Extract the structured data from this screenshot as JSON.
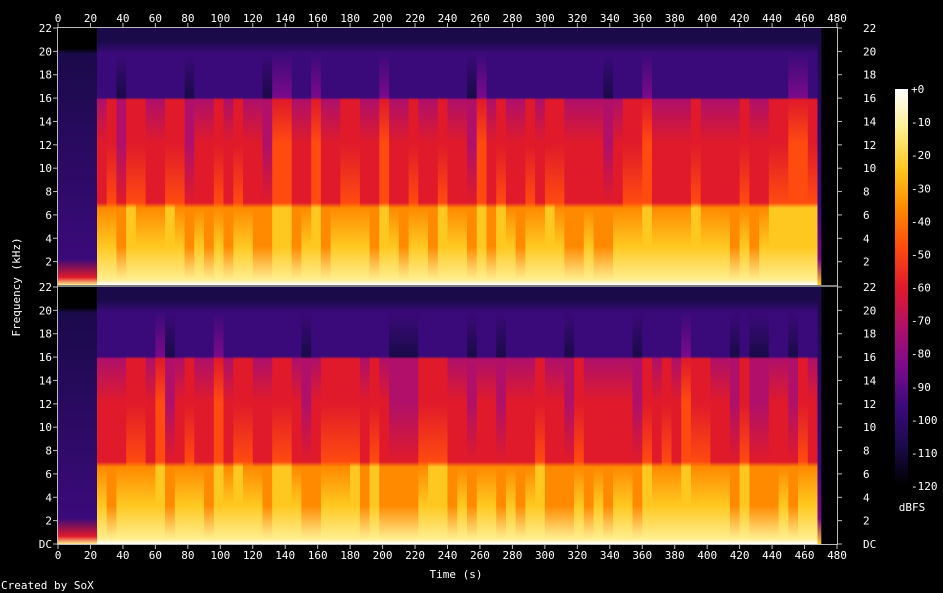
{
  "chart_data": {
    "type": "heatmap",
    "kind": "spectrogram",
    "channels": 2,
    "xlabel": "Time (s)",
    "ylabel": "Frequency (kHz)",
    "x_ticks": [
      "0",
      "20",
      "40",
      "60",
      "80",
      "100",
      "120",
      "140",
      "160",
      "180",
      "200",
      "220",
      "240",
      "260",
      "280",
      "300",
      "320",
      "340",
      "360",
      "380",
      "400",
      "420",
      "440",
      "460",
      "480"
    ],
    "xlim": [
      0,
      480
    ],
    "y_ticks_top_channel": [
      "2",
      "4",
      "6",
      "8",
      "10",
      "12",
      "14",
      "16",
      "18",
      "20",
      "22"
    ],
    "y_ticks_bottom_channel": [
      "DC",
      "2",
      "4",
      "6",
      "8",
      "10",
      "12",
      "14",
      "16",
      "18",
      "20",
      "22"
    ],
    "ylim_khz": [
      0,
      22
    ],
    "audio_duration_s": 470,
    "colorbar": {
      "label": "dBFS",
      "ticks": [
        "+0",
        "-10",
        "-20",
        "-30",
        "-40",
        "-50",
        "-60",
        "-70",
        "-80",
        "-90",
        "-100",
        "-110",
        "-120"
      ],
      "range_db": [
        -120,
        0
      ]
    },
    "colormap": [
      "#000000",
      "#1a0a4a",
      "#3b0a7a",
      "#7a0a8a",
      "#b0106a",
      "#e01a2a",
      "#ff4a10",
      "#ff8a00",
      "#ffc820",
      "#ffee90",
      "#ffffff"
    ],
    "spectral_profile": {
      "description_free": true,
      "leading_silence_s": 20,
      "main_energy_band_khz": [
        0,
        7
      ],
      "secondary_band_khz": [
        7,
        16
      ],
      "cutoff_khz": 16,
      "fade_out_start_s": 468
    },
    "credit": "Created by SoX"
  }
}
